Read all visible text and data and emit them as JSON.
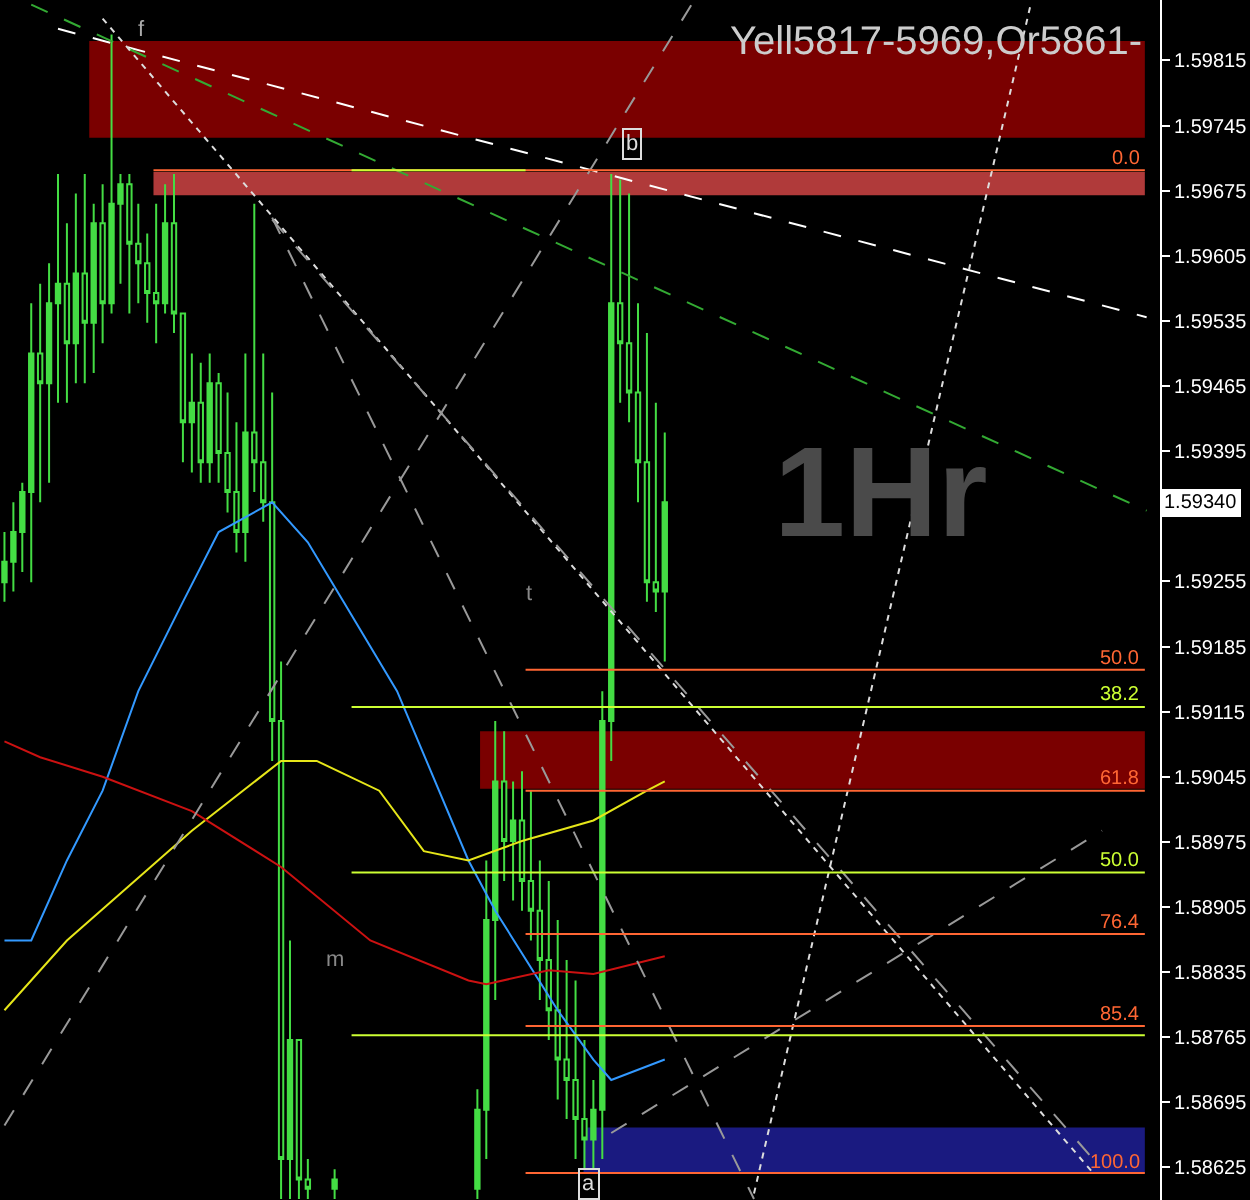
{
  "chart_data": {
    "type": "candlestick",
    "categories": [
      null,
      null,
      null,
      null,
      null,
      null,
      null,
      null,
      null,
      null,
      null,
      null,
      null,
      null,
      null,
      null,
      null,
      null,
      null,
      null,
      null,
      null,
      null,
      null,
      null,
      null,
      null,
      null,
      null,
      null,
      null,
      null,
      null,
      null,
      null,
      null,
      null,
      null,
      null,
      null,
      null,
      null,
      null,
      null,
      null,
      null,
      null,
      null,
      null,
      null,
      null,
      null,
      null,
      null,
      null,
      null,
      null,
      null,
      null,
      null,
      null,
      null,
      null,
      null,
      null,
      null,
      null,
      null,
      null,
      null,
      null,
      null,
      null,
      null,
      null,
      null,
      null,
      null,
      null,
      null,
      null,
      null,
      null,
      null,
      null,
      null,
      null,
      null,
      null,
      null,
      null,
      null,
      null,
      null,
      null,
      null,
      null,
      null,
      null,
      null,
      null,
      null,
      null,
      null,
      null,
      null,
      null,
      null,
      null,
      null,
      null,
      null,
      null,
      null,
      null,
      null,
      null,
      null,
      null,
      null,
      null,
      null,
      null,
      null,
      null,
      null,
      null,
      null,
      null,
      null
    ],
    "color": "#44dd44",
    "ohlc": [
      [
        1.59254,
        1.59308,
        1.59233,
        1.59276
      ],
      [
        1.59276,
        1.5934,
        1.59244,
        1.59308
      ],
      [
        1.59308,
        1.59361,
        1.59265,
        1.59351
      ],
      [
        1.59351,
        1.59554,
        1.59254,
        1.595
      ],
      [
        1.595,
        1.59575,
        1.5934,
        1.59468
      ],
      [
        1.59468,
        1.59597,
        1.59361,
        1.59554
      ],
      [
        1.59554,
        1.59693,
        1.59447,
        1.59575
      ],
      [
        1.59575,
        1.5964,
        1.59447,
        1.59511
      ],
      [
        1.59511,
        1.59672,
        1.59468,
        1.59586
      ],
      [
        1.59586,
        1.59693,
        1.59468,
        1.59533
      ],
      [
        1.59533,
        1.59661,
        1.59479,
        1.5964
      ],
      [
        1.5964,
        1.59682,
        1.59511,
        1.59554
      ],
      [
        1.59554,
        1.59843,
        1.59543,
        1.59661
      ],
      [
        1.59661,
        1.59693,
        1.59575,
        1.59682
      ],
      [
        1.59682,
        1.59693,
        1.59543,
        1.59618
      ],
      [
        1.59618,
        1.59661,
        1.59554,
        1.59597
      ],
      [
        1.59597,
        1.59629,
        1.59533,
        1.59565
      ],
      [
        1.59565,
        1.59661,
        1.59511,
        1.59554
      ],
      [
        1.59554,
        1.59682,
        1.59543,
        1.5964
      ],
      [
        1.5964,
        1.59693,
        1.59522,
        1.59543
      ],
      [
        1.59543,
        1.59543,
        1.59383,
        1.59426
      ],
      [
        1.59426,
        1.595,
        1.59372,
        1.59447
      ],
      [
        1.59447,
        1.5949,
        1.59361,
        1.59383
      ],
      [
        1.59383,
        1.595,
        1.59361,
        1.59468
      ],
      [
        1.59468,
        1.59479,
        1.59361,
        1.59393
      ],
      [
        1.59393,
        1.59458,
        1.59329,
        1.59351
      ],
      [
        1.59351,
        1.59426,
        1.59286,
        1.59308
      ],
      [
        1.59308,
        1.595,
        1.59276,
        1.59415
      ],
      [
        1.59415,
        1.59661,
        1.59351,
        1.59383
      ],
      [
        1.59383,
        1.595,
        1.59319,
        1.5934
      ],
      [
        1.5934,
        1.59458,
        1.59062,
        1.59105
      ],
      [
        1.59105,
        1.59169,
        1.58591,
        1.58634
      ],
      [
        1.58634,
        1.58869,
        1.58591,
        1.58762
      ],
      [
        1.58762,
        1.58762,
        1.58591,
        1.58612
      ],
      [
        1.58612,
        1.58634,
        1.58591,
        1.58602
      ],
      null,
      null,
      [
        1.58602,
        1.58623,
        1.58591,
        1.58612
      ],
      null,
      null,
      null,
      null,
      null,
      null,
      null,
      null,
      null,
      null,
      null,
      null,
      null,
      null,
      null,
      [
        1.58602,
        1.58709,
        1.58591,
        1.58687
      ],
      [
        1.58687,
        1.58955,
        1.58634,
        1.58891
      ],
      [
        1.58891,
        1.59105,
        1.58805,
        1.5904
      ],
      [
        1.5904,
        1.59094,
        1.58933,
        1.58976
      ],
      [
        1.58976,
        1.5904,
        1.58912,
        1.58998
      ],
      [
        1.58998,
        1.59051,
        1.58901,
        1.58933
      ],
      [
        1.58933,
        1.5903,
        1.58869,
        1.58901
      ],
      [
        1.58901,
        1.58955,
        1.58805,
        1.58848
      ],
      [
        1.58848,
        1.58933,
        1.58762,
        1.58794
      ],
      [
        1.58794,
        1.58891,
        1.58698,
        1.58741
      ],
      [
        1.58741,
        1.58848,
        1.58677,
        1.58719
      ],
      [
        1.58719,
        1.58826,
        1.58634,
        1.58677
      ],
      [
        1.58677,
        1.58762,
        1.58623,
        1.58655
      ],
      [
        1.58655,
        1.58719,
        1.58623,
        1.58687
      ],
      [
        1.58687,
        1.59137,
        1.58634,
        1.59105
      ],
      [
        1.59105,
        1.59693,
        1.59062,
        1.59554
      ],
      [
        1.59554,
        1.59687,
        1.59447,
        1.59511
      ],
      [
        1.59511,
        1.59672,
        1.59426,
        1.59458
      ],
      [
        1.59458,
        1.59554,
        1.5934,
        1.59383
      ],
      [
        1.59383,
        1.59522,
        1.59233,
        1.59254
      ],
      [
        1.59254,
        1.59447,
        1.59222,
        1.59244
      ],
      [
        1.59244,
        1.59415,
        1.59169,
        1.5934
      ],
      null,
      null,
      null,
      null,
      null,
      null,
      null,
      null,
      null,
      null,
      null,
      null,
      null,
      null,
      null,
      null,
      null,
      null,
      null,
      null,
      null,
      null,
      null,
      null,
      null,
      null,
      null,
      null,
      null,
      null,
      null,
      null,
      null,
      null,
      null,
      null,
      null,
      null,
      null,
      null,
      null,
      null,
      null,
      null,
      null,
      null,
      null,
      null,
      null,
      null,
      null,
      null,
      null,
      null,
      null
    ],
    "series": [
      {
        "type": "line",
        "color": "#3399ff",
        "line_style": "solid",
        "values": [
          1.58869,
          null,
          null,
          1.58869,
          null,
          null,
          null,
          1.58955,
          null,
          null,
          null,
          1.5903,
          null,
          null,
          null,
          1.59137,
          null,
          null,
          null,
          null,
          1.59233,
          null,
          null,
          null,
          1.59308,
          null,
          null,
          null,
          null,
          null,
          1.5934,
          null,
          null,
          null,
          1.59297,
          null,
          null,
          null,
          1.59233,
          null,
          null,
          null,
          null,
          null,
          1.59137,
          null,
          null,
          null,
          null,
          null,
          null,
          null,
          1.58955,
          null,
          null,
          1.58901,
          null,
          null,
          null,
          null,
          null,
          null,
          1.58794,
          null,
          null,
          null,
          1.58741,
          null,
          1.58719,
          null,
          null,
          null,
          null,
          null,
          1.58741,
          null,
          null,
          null,
          null,
          null,
          null,
          null,
          null,
          null,
          null,
          null,
          null,
          null,
          null,
          null,
          null,
          null,
          null,
          null,
          null,
          null,
          null,
          null,
          null,
          null,
          null,
          null,
          null,
          null,
          null,
          null,
          null,
          null,
          null,
          null,
          null,
          null,
          null,
          null,
          null,
          null,
          null,
          null,
          null,
          null,
          null,
          null,
          null,
          null,
          null,
          null,
          null,
          null,
          null,
          null
        ]
      },
      {
        "type": "line",
        "color": "#e6e619",
        "line_style": "solid",
        "values": [
          1.58794,
          null,
          null,
          null,
          null,
          null,
          null,
          1.58869,
          null,
          null,
          null,
          null,
          null,
          null,
          null,
          null,
          null,
          null,
          null,
          null,
          null,
          1.58987,
          null,
          null,
          null,
          null,
          null,
          null,
          null,
          null,
          null,
          1.59062,
          null,
          null,
          null,
          1.59062,
          null,
          null,
          null,
          null,
          null,
          null,
          1.5903,
          null,
          null,
          null,
          null,
          1.58965,
          null,
          null,
          null,
          null,
          1.58955,
          null,
          null,
          null,
          null,
          null,
          1.58976,
          null,
          null,
          null,
          null,
          null,
          null,
          null,
          1.58998,
          null,
          null,
          null,
          null,
          null,
          1.5903,
          null,
          1.5904,
          null,
          null,
          null,
          null,
          null,
          null,
          null,
          null,
          null,
          null,
          null,
          null,
          null,
          null,
          null,
          null,
          null,
          null,
          null,
          null,
          null,
          null,
          null,
          null,
          null,
          null,
          null,
          null,
          null,
          null,
          null,
          null,
          null,
          null,
          null,
          null,
          null,
          null,
          null,
          null,
          null,
          null,
          null,
          null,
          null,
          null,
          null,
          null,
          null,
          null,
          null,
          null,
          null,
          null,
          null
        ]
      },
      {
        "type": "line",
        "color": "#cc1111",
        "line_style": "solid",
        "values": [
          1.59083,
          null,
          null,
          null,
          1.59066,
          null,
          null,
          null,
          null,
          null,
          null,
          1.59045,
          null,
          null,
          null,
          null,
          null,
          null,
          null,
          null,
          null,
          1.59008,
          null,
          null,
          null,
          null,
          null,
          null,
          null,
          null,
          null,
          1.58948,
          null,
          null,
          null,
          null,
          null,
          null,
          null,
          null,
          null,
          1.58869,
          null,
          null,
          null,
          null,
          null,
          null,
          null,
          null,
          null,
          null,
          1.58826,
          null,
          1.58822,
          null,
          null,
          null,
          null,
          null,
          null,
          1.58837,
          null,
          null,
          null,
          null,
          1.58833,
          null,
          null,
          null,
          null,
          null,
          null,
          null,
          1.58852,
          null,
          null,
          null,
          null,
          null,
          null,
          null,
          null,
          null,
          null,
          null,
          null,
          null,
          null,
          null,
          null,
          null,
          null,
          null,
          null,
          null,
          null,
          null,
          null,
          null,
          null,
          null,
          null,
          null,
          null,
          null,
          null,
          null,
          null,
          null,
          null,
          null,
          null,
          null,
          null,
          null,
          null,
          null,
          null,
          null,
          null,
          null,
          null,
          null,
          null,
          null,
          null,
          null,
          null,
          null
        ]
      },
      {
        "type": "line",
        "color": "#ffffff",
        "line_style": "dashed",
        "values": [
          null,
          null,
          null,
          null,
          null,
          null,
          1.59849,
          null,
          null,
          null,
          null,
          null,
          null,
          null,
          null,
          null,
          null,
          null,
          null,
          null,
          null,
          null,
          null,
          null,
          null,
          null,
          null,
          null,
          null,
          null,
          null,
          null,
          null,
          null,
          null,
          null,
          null,
          null,
          null,
          null,
          null,
          null,
          null,
          null,
          null,
          null,
          null,
          null,
          null,
          null,
          null,
          null,
          null,
          null,
          null,
          null,
          null,
          null,
          null,
          null,
          null,
          null,
          null,
          null,
          null,
          null,
          null,
          null,
          null,
          null,
          null,
          null,
          null,
          null,
          null,
          null,
          null,
          null,
          null,
          null,
          null,
          null,
          null,
          null,
          null,
          null,
          null,
          null,
          null,
          null,
          null,
          null,
          null,
          null,
          null,
          null,
          null,
          null,
          null,
          null,
          null,
          null,
          null,
          null,
          null,
          null,
          null,
          null,
          null,
          null,
          null,
          null,
          null,
          null,
          null,
          null,
          null,
          null,
          null,
          null,
          null,
          null,
          null,
          null,
          null,
          null,
          null,
          null,
          1.59539,
          null
        ]
      },
      {
        "type": "line",
        "color": "#33aa33",
        "line_style": "dashed",
        "values": [
          null,
          null,
          null,
          1.59875,
          null,
          null,
          null,
          null,
          null,
          null,
          null,
          null,
          null,
          null,
          null,
          null,
          null,
          null,
          null,
          null,
          null,
          null,
          null,
          null,
          null,
          null,
          null,
          null,
          null,
          null,
          null,
          null,
          null,
          null,
          null,
          null,
          null,
          null,
          null,
          null,
          null,
          null,
          null,
          null,
          null,
          null,
          null,
          null,
          null,
          null,
          null,
          null,
          null,
          null,
          null,
          null,
          null,
          null,
          null,
          null,
          null,
          null,
          null,
          null,
          null,
          null,
          null,
          null,
          null,
          null,
          null,
          null,
          null,
          null,
          null,
          null,
          null,
          null,
          null,
          null,
          null,
          null,
          null,
          null,
          null,
          null,
          null,
          null,
          null,
          null,
          null,
          null,
          null,
          null,
          null,
          null,
          null,
          null,
          null,
          null,
          null,
          null,
          null,
          null,
          null,
          null,
          null,
          null,
          null,
          null,
          null,
          null,
          null,
          null,
          null,
          null,
          null,
          null,
          null,
          null,
          null,
          null,
          null,
          null,
          null,
          null,
          null,
          null,
          1.59331,
          null
        ]
      },
      {
        "type": "line",
        "color": "#dddddd",
        "line_style": "dotted",
        "values": [
          null,
          null,
          null,
          null,
          null,
          null,
          null,
          null,
          null,
          null,
          null,
          1.5986,
          null,
          null,
          null,
          null,
          null,
          null,
          null,
          null,
          null,
          null,
          null,
          null,
          null,
          null,
          null,
          null,
          null,
          null,
          null,
          null,
          null,
          null,
          null,
          null,
          null,
          null,
          null,
          null,
          null,
          null,
          null,
          null,
          null,
          null,
          null,
          null,
          null,
          null,
          null,
          null,
          null,
          null,
          null,
          null,
          null,
          null,
          null,
          null,
          null,
          null,
          null,
          null,
          null,
          null,
          null,
          null,
          null,
          null,
          null,
          null,
          null,
          null,
          null,
          null,
          null,
          null,
          null,
          null,
          null,
          null,
          null,
          null,
          null,
          null,
          null,
          null,
          null,
          null,
          null,
          null,
          null,
          null,
          null,
          null,
          null,
          null,
          null,
          null,
          null,
          null,
          null,
          null,
          null,
          null,
          null,
          null,
          null,
          null,
          null,
          null,
          null,
          null,
          null,
          null,
          null,
          null,
          null,
          null,
          null,
          null,
          1.58619,
          null,
          null,
          null,
          null,
          null,
          null,
          null
        ]
      },
      {
        "type": "line",
        "color": "#999999",
        "line_style": "dashed",
        "values": [
          null,
          null,
          null,
          null,
          null,
          null,
          null,
          null,
          null,
          null,
          null,
          null,
          null,
          null,
          null,
          null,
          null,
          null,
          null,
          null,
          null,
          null,
          null,
          null,
          null,
          null,
          null,
          null,
          null,
          null,
          1.59646,
          null,
          null,
          null,
          null,
          null,
          null,
          null,
          null,
          null,
          null,
          null,
          null,
          null,
          null,
          null,
          null,
          null,
          null,
          null,
          null,
          null,
          null,
          null,
          null,
          null,
          null,
          null,
          null,
          null,
          null,
          null,
          null,
          null,
          null,
          null,
          null,
          null,
          null,
          null,
          null,
          null,
          null,
          null,
          null,
          null,
          null,
          null,
          null,
          null,
          null,
          null,
          null,
          null,
          1.58591,
          null,
          null,
          null,
          null,
          null,
          null,
          null,
          null,
          null,
          null,
          null,
          null,
          null,
          null,
          null,
          null,
          null,
          null,
          null,
          null,
          null,
          null,
          null,
          null,
          null,
          null,
          null,
          null,
          null,
          null,
          null,
          null,
          null,
          null,
          null,
          null,
          null,
          null,
          null,
          null,
          null,
          null,
          null,
          null,
          null
        ]
      },
      {
        "type": "line",
        "color": "#999999",
        "line_style": "dashed",
        "values": [
          null,
          null,
          null,
          null,
          null,
          null,
          null,
          null,
          null,
          null,
          null,
          null,
          null,
          null,
          null,
          null,
          null,
          null,
          null,
          null,
          null,
          null,
          null,
          null,
          null,
          null,
          null,
          null,
          null,
          null,
          1.59644,
          null,
          null,
          null,
          null,
          null,
          null,
          null,
          null,
          null,
          null,
          null,
          null,
          null,
          null,
          null,
          null,
          null,
          null,
          null,
          null,
          null,
          null,
          null,
          null,
          null,
          null,
          null,
          null,
          null,
          null,
          null,
          null,
          null,
          null,
          null,
          null,
          null,
          null,
          null,
          null,
          null,
          null,
          null,
          null,
          null,
          null,
          null,
          null,
          null,
          null,
          null,
          null,
          null,
          null,
          null,
          null,
          null,
          null,
          null,
          null,
          null,
          null,
          null,
          null,
          null,
          null,
          null,
          null,
          null,
          null,
          null,
          null,
          null,
          null,
          null,
          null,
          null,
          null,
          null,
          null,
          null,
          null,
          null,
          null,
          null,
          null,
          null,
          null,
          null,
          null,
          null,
          1.58634,
          null,
          null,
          null,
          null,
          null,
          null,
          null
        ]
      },
      {
        "type": "line",
        "color": "#999999",
        "line_style": "dashed",
        "values": [
          1.5867,
          null,
          null,
          null,
          null,
          null,
          null,
          null,
          null,
          null,
          null,
          null,
          null,
          null,
          null,
          null,
          null,
          null,
          null,
          null,
          null,
          null,
          null,
          null,
          null,
          null,
          null,
          null,
          null,
          null,
          null,
          null,
          null,
          null,
          null,
          null,
          null,
          null,
          null,
          null,
          null,
          null,
          null,
          null,
          null,
          null,
          null,
          null,
          null,
          null,
          null,
          null,
          null,
          null,
          null,
          null,
          null,
          null,
          null,
          null,
          null,
          null,
          null,
          null,
          null,
          null,
          null,
          null,
          null,
          null,
          null,
          null,
          null,
          null,
          null,
          null,
          null,
          1.59875,
          null,
          null,
          null,
          null,
          null,
          null,
          null,
          null,
          null,
          null,
          null,
          null,
          null,
          null,
          null,
          null,
          null,
          null,
          null,
          null,
          null,
          null,
          null,
          null,
          null,
          null,
          null,
          null,
          null,
          null,
          null,
          null,
          null,
          null,
          null,
          null,
          null,
          null,
          null,
          null,
          null,
          null,
          null,
          null,
          null,
          null,
          null,
          null,
          null,
          null,
          null,
          null
        ]
      },
      {
        "type": "line",
        "color": "#dddddd",
        "line_style": "dotted",
        "values": [
          null,
          null,
          null,
          null,
          null,
          null,
          null,
          null,
          null,
          null,
          null,
          null,
          null,
          null,
          null,
          null,
          null,
          null,
          null,
          null,
          null,
          null,
          null,
          null,
          null,
          null,
          null,
          null,
          null,
          null,
          null,
          null,
          null,
          null,
          null,
          null,
          null,
          null,
          null,
          null,
          null,
          null,
          null,
          null,
          null,
          null,
          null,
          null,
          null,
          null,
          null,
          null,
          null,
          null,
          null,
          null,
          null,
          null,
          null,
          null,
          null,
          null,
          null,
          null,
          null,
          null,
          null,
          null,
          null,
          null,
          null,
          null,
          null,
          null,
          null,
          null,
          null,
          null,
          null,
          null,
          null,
          null,
          null,
          null,
          1.58597,
          null,
          null,
          null,
          null,
          null,
          null,
          null,
          null,
          null,
          null,
          null,
          null,
          null,
          null,
          null,
          null,
          null,
          null,
          null,
          null,
          null,
          null,
          null,
          null,
          null,
          null,
          null,
          null,
          null,
          null,
          1.59875,
          null,
          null,
          null,
          null,
          null,
          null,
          null,
          null,
          null,
          null,
          null,
          null,
          null,
          null
        ]
      },
      {
        "type": "line",
        "color": "#999999",
        "line_style": "dashed",
        "values": [
          null,
          null,
          null,
          null,
          null,
          null,
          null,
          null,
          null,
          null,
          null,
          null,
          null,
          null,
          null,
          null,
          null,
          null,
          null,
          null,
          null,
          null,
          null,
          null,
          null,
          null,
          null,
          null,
          null,
          null,
          null,
          null,
          null,
          null,
          null,
          null,
          null,
          null,
          null,
          null,
          null,
          null,
          null,
          null,
          null,
          null,
          null,
          null,
          null,
          null,
          null,
          null,
          null,
          null,
          null,
          null,
          null,
          null,
          null,
          null,
          null,
          null,
          null,
          null,
          null,
          null,
          null,
          null,
          1.58662,
          null,
          null,
          null,
          null,
          null,
          null,
          null,
          null,
          null,
          null,
          null,
          null,
          null,
          null,
          null,
          null,
          null,
          null,
          null,
          null,
          null,
          null,
          null,
          null,
          null,
          null,
          null,
          null,
          null,
          null,
          null,
          null,
          null,
          null,
          null,
          null,
          null,
          null,
          null,
          null,
          null,
          null,
          null,
          null,
          null,
          null,
          null,
          null,
          null,
          null,
          null,
          null,
          null,
          null,
          1.58987,
          null,
          null,
          null,
          null,
          null,
          null
        ]
      }
    ],
    "bands": [
      {
        "axis": "y",
        "from": 1.59732,
        "to": 1.59836,
        "color": "#7a0000"
      },
      {
        "axis": "y",
        "from": 1.5967,
        "to": 1.59695,
        "color": "#b03a3a"
      },
      {
        "axis": "y",
        "from": 1.59032,
        "to": 1.59094,
        "color": "#7a0000"
      },
      {
        "axis": "y",
        "from": 1.58619,
        "to": 1.58668,
        "color": "#1a1a80"
      }
    ],
    "ref_lines": [
      {
        "axis": "y",
        "value": 1.59697,
        "color": "#ff6633"
      },
      {
        "axis": "y",
        "value": 1.59697,
        "color": "#ccff33"
      },
      {
        "axis": "y",
        "value": 1.5916,
        "color": "#ff6633"
      },
      {
        "axis": "y",
        "value": 1.5912,
        "color": "#ccff33"
      },
      {
        "axis": "y",
        "value": 1.5903,
        "color": "#ff6633"
      },
      {
        "axis": "y",
        "value": 1.58942,
        "color": "#ccff33"
      },
      {
        "axis": "y",
        "value": 1.58876,
        "color": "#ff6633"
      },
      {
        "axis": "y",
        "value": 1.58777,
        "color": "#ff6633"
      },
      {
        "axis": "y",
        "value": 1.58767,
        "color": "#ccff33"
      },
      {
        "axis": "y",
        "value": 1.58619,
        "color": "#ff6633"
      }
    ],
    "annotations": [
      "Yell5817-5969,Or5861-",
      "1Hr",
      "f",
      "b",
      "a",
      "t",
      "m",
      {
        "text": "0.0",
        "y": 1.59697
      },
      {
        "text": "50.0",
        "y": 1.5916
      },
      {
        "text": "38.2",
        "y": 1.5912
      },
      {
        "text": "61.8",
        "y": 1.5903
      },
      {
        "text": "50.0",
        "y": 1.58942
      },
      {
        "text": "76.4",
        "y": 1.58876
      },
      {
        "text": "85.4",
        "y": 1.58777
      },
      {
        "text": "100.0",
        "y": 1.58619
      },
      {
        "text": "1.59340",
        "y": 1.5934
      }
    ],
    "ylim": [
      1.5859,
      1.5988
    ],
    "yticks": [
      1.58625,
      1.58695,
      1.58765,
      1.58835,
      1.58905,
      1.58975,
      1.59045,
      1.59115,
      1.59185,
      1.59255,
      {
        "value": 1.59325,
        "label": null
      },
      1.59395,
      1.59465,
      1.59535,
      1.59605,
      1.59675,
      1.59745,
      1.59815
    ],
    "tick_labels": "y"
  }
}
